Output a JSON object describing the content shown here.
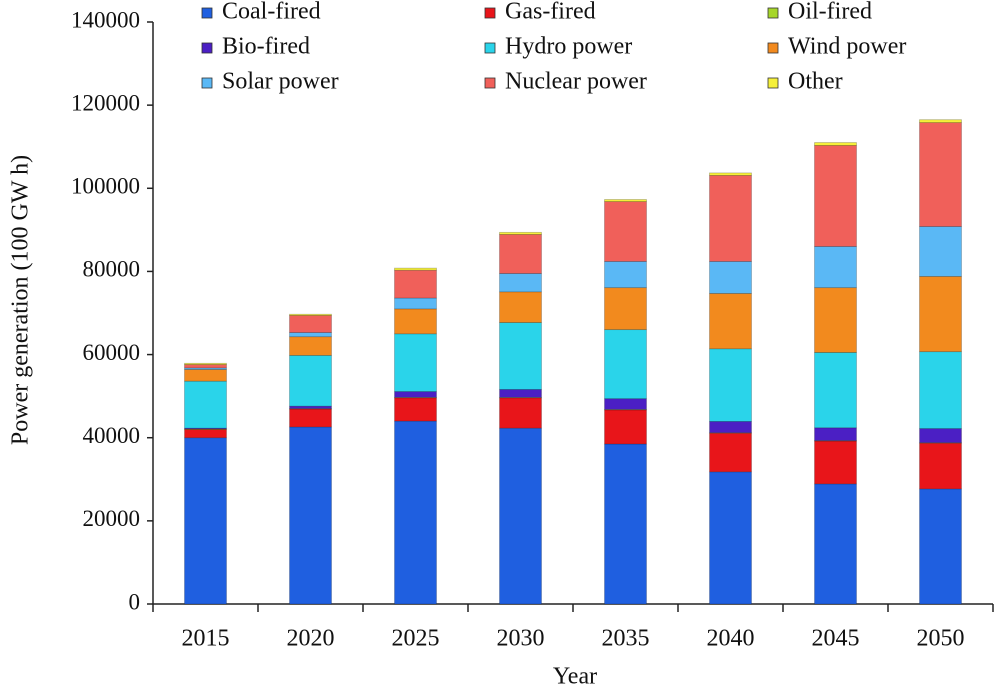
{
  "chart_data": {
    "type": "stacked_bar",
    "x_label": "Year",
    "y_label": "Power generation (100 GW h)",
    "categories": [
      "2015",
      "2020",
      "2025",
      "2030",
      "2035",
      "2040",
      "2045",
      "2050"
    ],
    "series": [
      {
        "name": "Coal-fired",
        "color": "#1f5fe0",
        "values": [
          40000,
          42600,
          44000,
          42300,
          38500,
          31800,
          28900,
          27700
        ]
      },
      {
        "name": "Gas-fired",
        "color": "#e8151a",
        "values": [
          2000,
          4300,
          5600,
          7300,
          8200,
          9300,
          10300,
          11000
        ]
      },
      {
        "name": "Oil-fired",
        "color": "#a6d62a",
        "values": [
          100,
          100,
          100,
          100,
          100,
          100,
          100,
          100
        ]
      },
      {
        "name": "Bio-fired",
        "color": "#4b1fc4",
        "values": [
          200,
          600,
          1400,
          1900,
          2600,
          2700,
          3100,
          3400
        ]
      },
      {
        "name": "Hydro power",
        "color": "#2ad4ea",
        "values": [
          11300,
          12200,
          13900,
          16100,
          16600,
          17500,
          18100,
          18500
        ]
      },
      {
        "name": "Wind power",
        "color": "#f28a1e",
        "values": [
          2800,
          4500,
          6000,
          7400,
          10100,
          13300,
          15600,
          18100
        ]
      },
      {
        "name": "Solar power",
        "color": "#5ab8f5",
        "values": [
          400,
          1000,
          2600,
          4400,
          6300,
          7700,
          9900,
          12000
        ]
      },
      {
        "name": "Nuclear power",
        "color": "#f0605a",
        "values": [
          800,
          4100,
          6700,
          9400,
          14400,
          20700,
          24300,
          25000
        ]
      },
      {
        "name": "Other",
        "color": "#f5f03a",
        "values": [
          300,
          300,
          500,
          500,
          500,
          600,
          700,
          700
        ]
      }
    ],
    "ylim": [
      0,
      140000
    ],
    "yticks": [
      0,
      20000,
      40000,
      60000,
      80000,
      100000,
      120000,
      140000
    ],
    "grid": false
  }
}
